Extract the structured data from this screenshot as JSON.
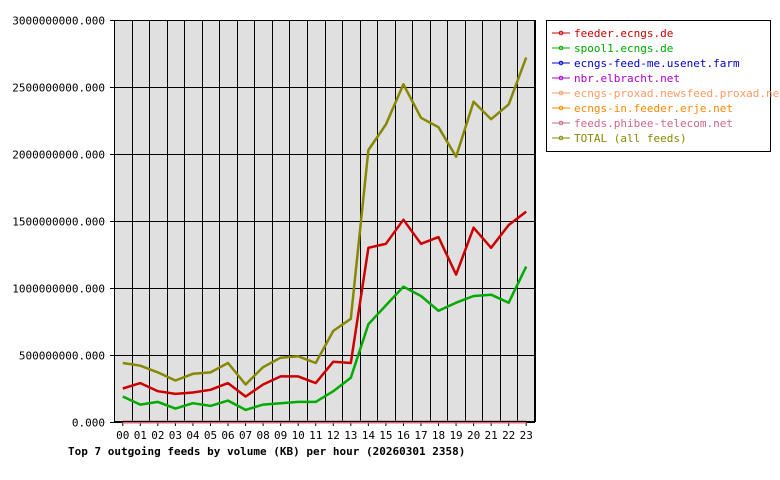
{
  "chart_data": {
    "type": "line",
    "title": "Top 7 outgoing feeds by volume (KB) per hour (20260301 2358)",
    "xlabel": "",
    "ylabel": "",
    "categories": [
      "00",
      "01",
      "02",
      "03",
      "04",
      "05",
      "06",
      "07",
      "08",
      "09",
      "10",
      "11",
      "12",
      "13",
      "14",
      "15",
      "16",
      "17",
      "18",
      "19",
      "20",
      "21",
      "22",
      "23"
    ],
    "ylim": [
      0,
      3000000000
    ],
    "yticks": [
      0,
      500000000,
      1000000000,
      1500000000,
      2000000000,
      2500000000,
      3000000000
    ],
    "ytick_labels": [
      "0.000",
      "500000000.000",
      "1000000000.000",
      "1500000000.000",
      "2000000000.000",
      "2500000000.000",
      "3000000000.000"
    ],
    "grid": true,
    "legend_position": "right",
    "series": [
      {
        "name": "feeder.ecngs.de",
        "color": "#cc0000",
        "values": [
          250000000,
          290000000,
          230000000,
          210000000,
          220000000,
          240000000,
          290000000,
          190000000,
          280000000,
          340000000,
          340000000,
          290000000,
          450000000,
          440000000,
          1300000000,
          1330000000,
          1510000000,
          1330000000,
          1380000000,
          1100000000,
          1450000000,
          1300000000,
          1470000000,
          1570000000
        ]
      },
      {
        "name": "spool1.ecngs.de",
        "color": "#00aa00",
        "values": [
          190000000,
          130000000,
          150000000,
          100000000,
          140000000,
          120000000,
          160000000,
          90000000,
          130000000,
          140000000,
          150000000,
          150000000,
          230000000,
          330000000,
          730000000,
          870000000,
          1010000000,
          940000000,
          830000000,
          890000000,
          940000000,
          950000000,
          890000000,
          1160000000
        ]
      },
      {
        "name": "ecngs-feed-me.usenet.farm",
        "color": "#0000cc",
        "values": [
          0,
          0,
          0,
          0,
          0,
          0,
          0,
          0,
          0,
          0,
          0,
          0,
          0,
          0,
          0,
          0,
          0,
          0,
          0,
          0,
          0,
          0,
          0,
          0
        ]
      },
      {
        "name": "nbr.elbracht.net",
        "color": "#aa00cc",
        "values": [
          0,
          0,
          0,
          0,
          0,
          0,
          0,
          0,
          0,
          0,
          0,
          0,
          0,
          0,
          0,
          0,
          0,
          0,
          0,
          0,
          0,
          0,
          0,
          0
        ]
      },
      {
        "name": "ecngs-proxad.newsfeed.proxad.net",
        "color": "#ff9966",
        "values": [
          0,
          0,
          0,
          0,
          0,
          0,
          0,
          0,
          0,
          0,
          0,
          0,
          0,
          0,
          0,
          0,
          0,
          0,
          0,
          0,
          0,
          0,
          0,
          0
        ]
      },
      {
        "name": "ecngs-in.feeder.erje.net",
        "color": "#ff8800",
        "values": [
          0,
          0,
          0,
          0,
          0,
          0,
          0,
          0,
          0,
          0,
          0,
          0,
          0,
          0,
          0,
          0,
          0,
          0,
          0,
          0,
          0,
          0,
          0,
          0
        ]
      },
      {
        "name": "feeds.phibee-telecom.net",
        "color": "#cc6688",
        "values": [
          0,
          0,
          0,
          0,
          0,
          0,
          0,
          0,
          0,
          0,
          0,
          0,
          0,
          0,
          0,
          0,
          0,
          0,
          0,
          0,
          0,
          0,
          0,
          0
        ]
      },
      {
        "name": "TOTAL (all feeds)",
        "color": "#888800",
        "values": [
          440000000,
          420000000,
          370000000,
          310000000,
          360000000,
          370000000,
          440000000,
          280000000,
          410000000,
          480000000,
          490000000,
          440000000,
          680000000,
          770000000,
          2030000000,
          2220000000,
          2520000000,
          2270000000,
          2200000000,
          1980000000,
          2390000000,
          2260000000,
          2370000000,
          2720000000
        ]
      }
    ]
  }
}
